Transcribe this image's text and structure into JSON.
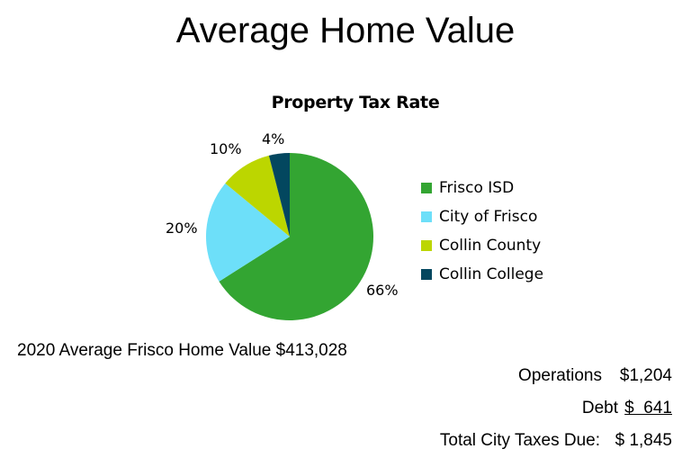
{
  "page": {
    "title": "Average Home Value"
  },
  "chart_data": {
    "type": "pie",
    "title": "Property Tax Rate",
    "categories": [
      "Frisco ISD",
      "City of Frisco",
      "Collin County",
      "Collin College"
    ],
    "values": [
      66,
      20,
      10,
      4
    ],
    "labels": [
      "66%",
      "20%",
      "10%",
      "4%"
    ],
    "colors": [
      "#33a532",
      "#6ddff9",
      "#bcd600",
      "#03475f"
    ],
    "legend_position": "right"
  },
  "legend": {
    "items": [
      {
        "label": "Frisco ISD",
        "color": "#33a532"
      },
      {
        "label": "City of Frisco",
        "color": "#6ddff9"
      },
      {
        "label": "Collin County",
        "color": "#bcd600"
      },
      {
        "label": "Collin College",
        "color": "#03475f"
      }
    ]
  },
  "home_value": {
    "text": "2020 Average Frisco Home Value $413,028"
  },
  "taxes": {
    "operations_label": "Operations",
    "operations_amount": "$1,204",
    "debt_label": "Debt",
    "debt_amount": "$  641",
    "total_label": "Total City Taxes Due:",
    "total_amount": "$ 1,845"
  }
}
